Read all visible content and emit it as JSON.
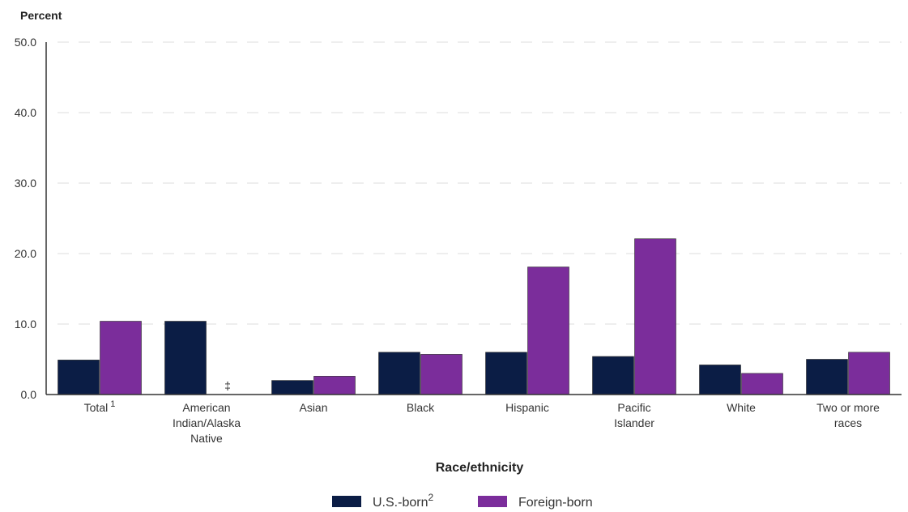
{
  "chart_data": {
    "type": "bar",
    "ylabel": "Percent",
    "xlabel": "Race/ethnicity",
    "ylim": [
      0,
      50
    ],
    "yticks": [
      "0.0",
      "10.0",
      "20.0",
      "30.0",
      "40.0",
      "50.0"
    ],
    "grid": true,
    "legend_position": "bottom",
    "categories": [
      {
        "lines": [
          "Total"
        ],
        "sup": "1"
      },
      {
        "lines": [
          "American",
          "Indian/Alaska",
          "Native"
        ],
        "sup": ""
      },
      {
        "lines": [
          "Asian"
        ],
        "sup": ""
      },
      {
        "lines": [
          "Black"
        ],
        "sup": ""
      },
      {
        "lines": [
          "Hispanic"
        ],
        "sup": ""
      },
      {
        "lines": [
          "Pacific",
          "Islander"
        ],
        "sup": ""
      },
      {
        "lines": [
          "White"
        ],
        "sup": ""
      },
      {
        "lines": [
          "Two or more",
          "races"
        ],
        "sup": ""
      }
    ],
    "series": [
      {
        "name": "U.S.-born",
        "sup": "2",
        "color": "#0b1d45",
        "values": [
          4.9,
          10.4,
          2.0,
          6.0,
          6.0,
          5.4,
          4.2,
          5.0
        ]
      },
      {
        "name": "Foreign-born",
        "sup": "",
        "color": "#7b2d9b",
        "values": [
          10.4,
          null,
          2.6,
          5.7,
          18.1,
          22.1,
          3.0,
          6.0
        ]
      }
    ],
    "missing_marker": "‡"
  }
}
